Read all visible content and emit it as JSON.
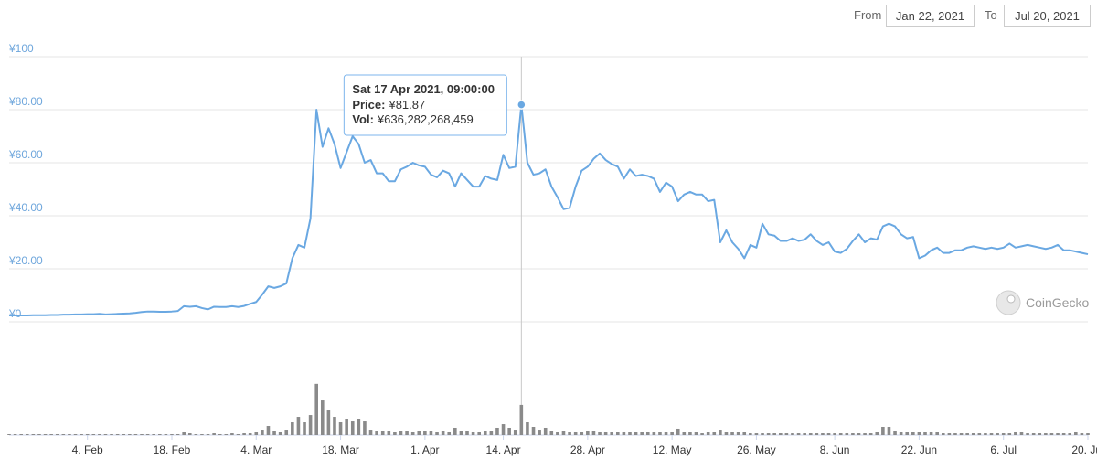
{
  "date_range": {
    "from_label": "From",
    "from": "Jan 22, 2021",
    "to_label": "To",
    "to": "Jul 20, 2021"
  },
  "chart_data": {
    "type": "line",
    "grid": true,
    "watermark": "CoinGecko",
    "xlim": [
      "2021-01-22",
      "2021-07-20"
    ],
    "xticks": [
      {
        "value": "2021-02-04",
        "label": "4. Feb"
      },
      {
        "value": "2021-02-18",
        "label": "18. Feb"
      },
      {
        "value": "2021-03-04",
        "label": "4. Mar"
      },
      {
        "value": "2021-03-18",
        "label": "18. Mar"
      },
      {
        "value": "2021-04-01",
        "label": "1. Apr"
      },
      {
        "value": "2021-04-14",
        "label": "14. Apr"
      },
      {
        "value": "2021-04-28",
        "label": "28. Apr"
      },
      {
        "value": "2021-05-12",
        "label": "12. May"
      },
      {
        "value": "2021-05-26",
        "label": "26. May"
      },
      {
        "value": "2021-06-08",
        "label": "8. Jun"
      },
      {
        "value": "2021-06-22",
        "label": "22. Jun"
      },
      {
        "value": "2021-07-06",
        "label": "6. Jul"
      },
      {
        "value": "2021-07-20",
        "label": "20. Jul"
      }
    ],
    "ylim": [
      0,
      100
    ],
    "yticks": [
      {
        "value": 0,
        "label": "¥0"
      },
      {
        "value": 20,
        "label": "¥20.00"
      },
      {
        "value": 40,
        "label": "¥40.00"
      },
      {
        "value": 60,
        "label": "¥60.00"
      },
      {
        "value": 80,
        "label": "¥80.00"
      },
      {
        "value": 100,
        "label": "¥100"
      }
    ],
    "y2lim": [
      0,
      2000000000000
    ],
    "tooltip": {
      "title": "Sat 17 Apr 2021, 09:00:00",
      "rows": [
        {
          "label": "Price:",
          "value": "¥81.87"
        },
        {
          "label": "Vol:",
          "value": "¥636,282,268,459"
        }
      ]
    },
    "x": [
      "2021-01-22",
      "2021-01-23",
      "2021-01-24",
      "2021-01-25",
      "2021-01-26",
      "2021-01-27",
      "2021-01-28",
      "2021-01-29",
      "2021-01-30",
      "2021-01-31",
      "2021-02-01",
      "2021-02-02",
      "2021-02-03",
      "2021-02-04",
      "2021-02-05",
      "2021-02-06",
      "2021-02-07",
      "2021-02-08",
      "2021-02-09",
      "2021-02-10",
      "2021-02-11",
      "2021-02-12",
      "2021-02-13",
      "2021-02-14",
      "2021-02-15",
      "2021-02-16",
      "2021-02-17",
      "2021-02-18",
      "2021-02-19",
      "2021-02-20",
      "2021-02-21",
      "2021-02-22",
      "2021-02-23",
      "2021-02-24",
      "2021-02-25",
      "2021-02-26",
      "2021-02-27",
      "2021-02-28",
      "2021-03-01",
      "2021-03-02",
      "2021-03-03",
      "2021-03-04",
      "2021-03-05",
      "2021-03-06",
      "2021-03-07",
      "2021-03-08",
      "2021-03-09",
      "2021-03-10",
      "2021-03-11",
      "2021-03-12",
      "2021-03-13",
      "2021-03-14",
      "2021-03-15",
      "2021-03-16",
      "2021-03-17",
      "2021-03-18",
      "2021-03-19",
      "2021-03-20",
      "2021-03-21",
      "2021-03-22",
      "2021-03-23",
      "2021-03-24",
      "2021-03-25",
      "2021-03-26",
      "2021-03-27",
      "2021-03-28",
      "2021-03-29",
      "2021-03-30",
      "2021-03-31",
      "2021-04-01",
      "2021-04-02",
      "2021-04-03",
      "2021-04-04",
      "2021-04-05",
      "2021-04-06",
      "2021-04-07",
      "2021-04-08",
      "2021-04-09",
      "2021-04-10",
      "2021-04-11",
      "2021-04-12",
      "2021-04-13",
      "2021-04-14",
      "2021-04-15",
      "2021-04-16",
      "2021-04-17",
      "2021-04-18",
      "2021-04-19",
      "2021-04-20",
      "2021-04-21",
      "2021-04-22",
      "2021-04-23",
      "2021-04-24",
      "2021-04-25",
      "2021-04-26",
      "2021-04-27",
      "2021-04-28",
      "2021-04-29",
      "2021-04-30",
      "2021-05-01",
      "2021-05-02",
      "2021-05-03",
      "2021-05-04",
      "2021-05-05",
      "2021-05-06",
      "2021-05-07",
      "2021-05-08",
      "2021-05-09",
      "2021-05-10",
      "2021-05-11",
      "2021-05-12",
      "2021-05-13",
      "2021-05-14",
      "2021-05-15",
      "2021-05-16",
      "2021-05-17",
      "2021-05-18",
      "2021-05-19",
      "2021-05-20",
      "2021-05-21",
      "2021-05-22",
      "2021-05-23",
      "2021-05-24",
      "2021-05-25",
      "2021-05-26",
      "2021-05-27",
      "2021-05-28",
      "2021-05-29",
      "2021-05-30",
      "2021-05-31",
      "2021-06-01",
      "2021-06-02",
      "2021-06-03",
      "2021-06-04",
      "2021-06-05",
      "2021-06-06",
      "2021-06-07",
      "2021-06-08",
      "2021-06-09",
      "2021-06-10",
      "2021-06-11",
      "2021-06-12",
      "2021-06-13",
      "2021-06-14",
      "2021-06-15",
      "2021-06-16",
      "2021-06-17",
      "2021-06-18",
      "2021-06-19",
      "2021-06-20",
      "2021-06-21",
      "2021-06-22",
      "2021-06-23",
      "2021-06-24",
      "2021-06-25",
      "2021-06-26",
      "2021-06-27",
      "2021-06-28",
      "2021-06-29",
      "2021-06-30",
      "2021-07-01",
      "2021-07-02",
      "2021-07-03",
      "2021-07-04",
      "2021-07-05",
      "2021-07-06",
      "2021-07-07",
      "2021-07-08",
      "2021-07-09",
      "2021-07-10",
      "2021-07-11",
      "2021-07-12",
      "2021-07-13",
      "2021-07-14",
      "2021-07-15",
      "2021-07-16",
      "2021-07-17",
      "2021-07-18",
      "2021-07-19",
      "2021-07-20"
    ],
    "series": [
      {
        "color": "#6aa8e2",
        "values": [
          2.4,
          2.4,
          2.4,
          2.4,
          2.5,
          2.5,
          2.5,
          2.6,
          2.6,
          2.7,
          2.7,
          2.8,
          2.8,
          2.9,
          2.9,
          3.0,
          2.8,
          2.9,
          3.0,
          3.1,
          3.2,
          3.4,
          3.7,
          3.9,
          3.9,
          3.8,
          3.8,
          3.9,
          4.1,
          5.9,
          5.7,
          5.9,
          5.2,
          4.7,
          5.7,
          5.6,
          5.6,
          5.9,
          5.6,
          6.0,
          6.8,
          7.5,
          10.3,
          13.4,
          12.8,
          13.4,
          14.5,
          24,
          29,
          28,
          39,
          80,
          66,
          73,
          67,
          58,
          64,
          70,
          67,
          60,
          61,
          56,
          56,
          53,
          53,
          57.5,
          58.5,
          60,
          59,
          58.5,
          55.5,
          54.5,
          57,
          56,
          51,
          56,
          53.5,
          51,
          51,
          55,
          54,
          53.5,
          63,
          58,
          58.5,
          81.87,
          60,
          55.5,
          56,
          57.5,
          51,
          47,
          42.5,
          43,
          51,
          57,
          58.5,
          61.5,
          63.5,
          61,
          59.5,
          58.5,
          54,
          57.5,
          55,
          55.5,
          55,
          54,
          49,
          52.5,
          51,
          45.5,
          48,
          49,
          48,
          48,
          45.5,
          46,
          30,
          34.5,
          30,
          27.5,
          24,
          29,
          28,
          37,
          33,
          32.5,
          30.5,
          30.5,
          31.5,
          30.5,
          31,
          33,
          30.5,
          29,
          30,
          26.5,
          26,
          27.5,
          30.5,
          33,
          30,
          31.5,
          31,
          36,
          37,
          36,
          33,
          31.5,
          32,
          24,
          25,
          27,
          28,
          26,
          26,
          27,
          27,
          28,
          28.5,
          28,
          27.5,
          28,
          27.5,
          28,
          29.5,
          28,
          28.5,
          29,
          28.5,
          28,
          27.5,
          28,
          29,
          27,
          27,
          26.5,
          26,
          25.5
        ]
      },
      {
        "type": "bar",
        "axis": "y2",
        "color": "#8a8a8a",
        "values": [
          19000000000.0,
          19000000000.0,
          19000000000.0,
          19000000000.0,
          19000000000.0,
          19000000000.0,
          19000000000.0,
          19000000000.0,
          19000000000.0,
          19000000000.0,
          19000000000.0,
          19000000000.0,
          19000000000.0,
          19000000000.0,
          19000000000.0,
          19000000000.0,
          19000000000.0,
          19000000000.0,
          19000000000.0,
          19000000000.0,
          19000000000.0,
          19000000000.0,
          19000000000.0,
          19000000000.0,
          19000000000.0,
          19000000000.0,
          19000000000.0,
          19000000000.0,
          19000000000.0,
          77000000000.0,
          38000000000.0,
          19000000000.0,
          19000000000.0,
          19000000000.0,
          38000000000.0,
          19000000000.0,
          19000000000.0,
          38000000000.0,
          19000000000.0,
          38000000000.0,
          38000000000.0,
          58000000000.0,
          115000000000.0,
          192000000000.0,
          96000000000.0,
          58000000000.0,
          115000000000.0,
          269000000000.0,
          384000000000.0,
          269000000000.0,
          422000000000.0,
          1080000000000.0,
          730000000000.0,
          538000000000.0,
          384000000000.0,
          288000000000.0,
          346000000000.0,
          307000000000.0,
          346000000000.0,
          307000000000.0,
          115000000000.0,
          96000000000.0,
          96000000000.0,
          96000000000.0,
          77000000000.0,
          96000000000.0,
          96000000000.0,
          77000000000.0,
          96000000000.0,
          96000000000.0,
          96000000000.0,
          77000000000.0,
          96000000000.0,
          77000000000.0,
          154000000000.0,
          96000000000.0,
          96000000000.0,
          77000000000.0,
          77000000000.0,
          96000000000.0,
          96000000000.0,
          154000000000.0,
          230000000000.0,
          154000000000.0,
          115000000000.0,
          636282268459,
          288000000000.0,
          173000000000.0,
          115000000000.0,
          154000000000.0,
          96000000000.0,
          77000000000.0,
          96000000000.0,
          58000000000.0,
          77000000000.0,
          77000000000.0,
          96000000000.0,
          96000000000.0,
          77000000000.0,
          77000000000.0,
          58000000000.0,
          58000000000.0,
          77000000000.0,
          58000000000.0,
          58000000000.0,
          58000000000.0,
          77000000000.0,
          58000000000.0,
          58000000000.0,
          58000000000.0,
          77000000000.0,
          135000000000.0,
          58000000000.0,
          58000000000.0,
          58000000000.0,
          38000000000.0,
          58000000000.0,
          58000000000.0,
          115000000000.0,
          58000000000.0,
          58000000000.0,
          58000000000.0,
          58000000000.0,
          38000000000.0,
          38000000000.0,
          38000000000.0,
          38000000000.0,
          38000000000.0,
          38000000000.0,
          38000000000.0,
          38000000000.0,
          38000000000.0,
          38000000000.0,
          38000000000.0,
          38000000000.0,
          38000000000.0,
          38000000000.0,
          38000000000.0,
          38000000000.0,
          38000000000.0,
          38000000000.0,
          38000000000.0,
          38000000000.0,
          38000000000.0,
          58000000000.0,
          173000000000.0,
          173000000000.0,
          96000000000.0,
          58000000000.0,
          58000000000.0,
          58000000000.0,
          58000000000.0,
          58000000000.0,
          77000000000.0,
          58000000000.0,
          38000000000.0,
          38000000000.0,
          38000000000.0,
          38000000000.0,
          38000000000.0,
          38000000000.0,
          38000000000.0,
          38000000000.0,
          38000000000.0,
          38000000000.0,
          38000000000.0,
          38000000000.0,
          77000000000.0,
          58000000000.0,
          38000000000.0,
          38000000000.0,
          38000000000.0,
          38000000000.0,
          38000000000.0,
          38000000000.0,
          38000000000.0,
          38000000000.0,
          77000000000.0,
          38000000000.0,
          38000000000.0
        ]
      }
    ]
  }
}
